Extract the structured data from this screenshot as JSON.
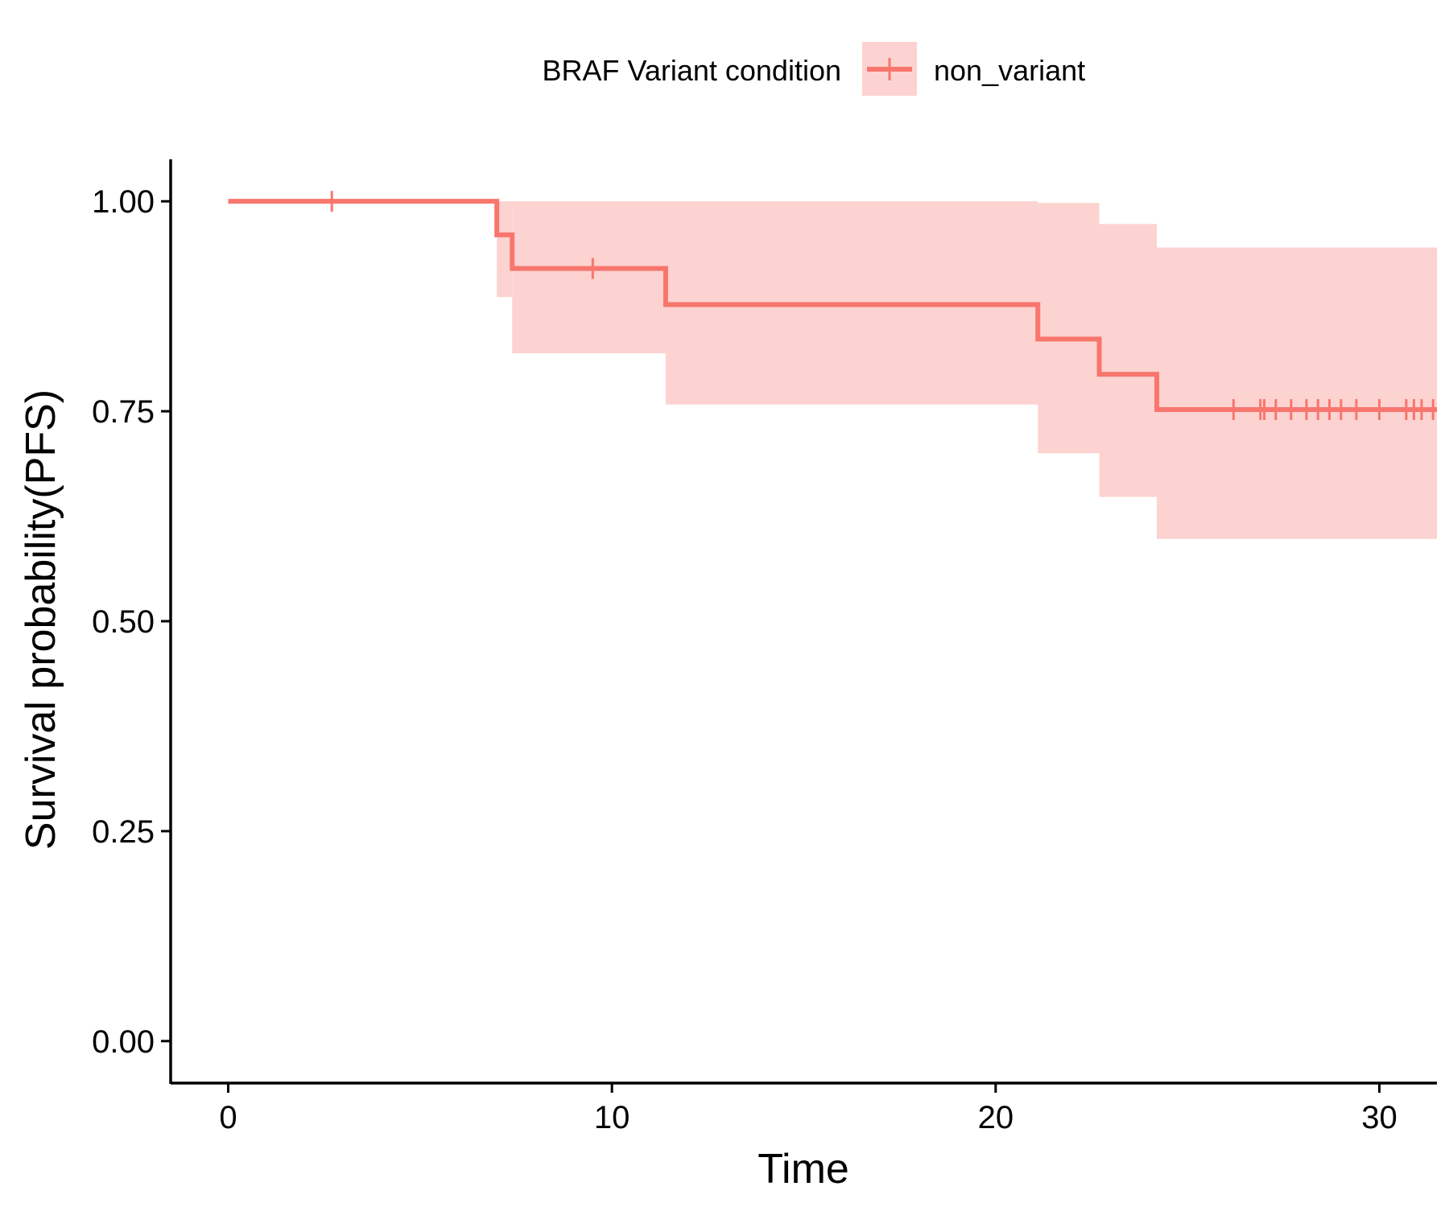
{
  "chart_data": {
    "type": "line",
    "subtype": "kaplan-meier step curve with confidence band",
    "xlabel": "Time",
    "ylabel": "Survival probability(PFS)",
    "xlim": [
      -1.5,
      31.5
    ],
    "ylim": [
      -0.05,
      1.05
    ],
    "x_ticks": [
      0,
      10,
      20,
      30
    ],
    "x_tick_labels": [
      "0",
      "10",
      "20",
      "30"
    ],
    "y_ticks": [
      0,
      0.25,
      0.5,
      0.75,
      1.0
    ],
    "y_tick_labels": [
      "0.00",
      "0.25",
      "0.50",
      "0.75",
      "1.00"
    ],
    "grid": false,
    "legend": {
      "position": "top",
      "title": "BRAF Variant condition",
      "entries": [
        "non_variant"
      ]
    },
    "colors": {
      "line": "#F8766D",
      "band": "#FCD3D0"
    },
    "series": [
      {
        "name": "non_variant",
        "steps": [
          {
            "x": 0,
            "y": 1.0,
            "lower": 1.0,
            "upper": 1.0
          },
          {
            "x": 7.0,
            "y": 0.96,
            "lower": 0.886,
            "upper": 1.0
          },
          {
            "x": 7.4,
            "y": 0.92,
            "lower": 0.819,
            "upper": 1.0
          },
          {
            "x": 11.4,
            "y": 0.877,
            "lower": 0.758,
            "upper": 1.0
          },
          {
            "x": 21.1,
            "y": 0.836,
            "lower": 0.7,
            "upper": 0.998
          },
          {
            "x": 22.7,
            "y": 0.794,
            "lower": 0.648,
            "upper": 0.973
          },
          {
            "x": 24.2,
            "y": 0.752,
            "lower": 0.598,
            "upper": 0.945
          }
        ],
        "end_x": 31.5,
        "censor_times": [
          2.7,
          9.5,
          26.2,
          26.9,
          27.0,
          27.3,
          27.7,
          28.1,
          28.4,
          28.7,
          29.0,
          29.4,
          30.0,
          30.7,
          30.9,
          31.1,
          31.4
        ]
      }
    ]
  }
}
